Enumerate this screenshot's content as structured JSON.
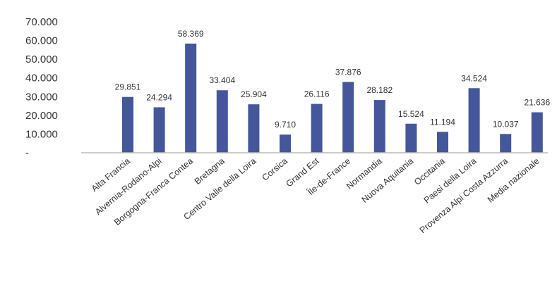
{
  "chart_data": {
    "type": "bar",
    "categories": [
      "Alta Francia",
      "Alvernia-Rodano-Alpi",
      "Borgogna-Franca Contea",
      "Bretagna",
      "Centro Valle della Loira",
      "Corsica",
      "Grand Est",
      "Île-de-France",
      "Normandia",
      "Nuova Aquitania",
      "Occitania",
      "Paesi della Loira",
      "Provenza Alpi Costa Azzurra",
      "Media nazionale"
    ],
    "values": [
      29851,
      24294,
      58369,
      33404,
      25904,
      9710,
      26116,
      37876,
      28182,
      15524,
      11194,
      34524,
      10037,
      21636
    ],
    "value_labels": [
      "29.851",
      "24.294",
      "58.369",
      "33.404",
      "25.904",
      "9.710",
      "26.116",
      "37.876",
      "28.182",
      "15.524",
      "11.194",
      "34.524",
      "10.037",
      "21.636"
    ],
    "y_ticks": [
      0,
      10000,
      20000,
      30000,
      40000,
      50000,
      60000,
      70000
    ],
    "y_tick_labels": [
      "-",
      "10.000",
      "20.000",
      "30.000",
      "40.000",
      "50.000",
      "60.000",
      "70.000"
    ],
    "ylim": [
      0,
      70000
    ],
    "grid": false,
    "legend": "none",
    "bar_color": "#45569a",
    "axis_color": "#bcbcbc"
  }
}
